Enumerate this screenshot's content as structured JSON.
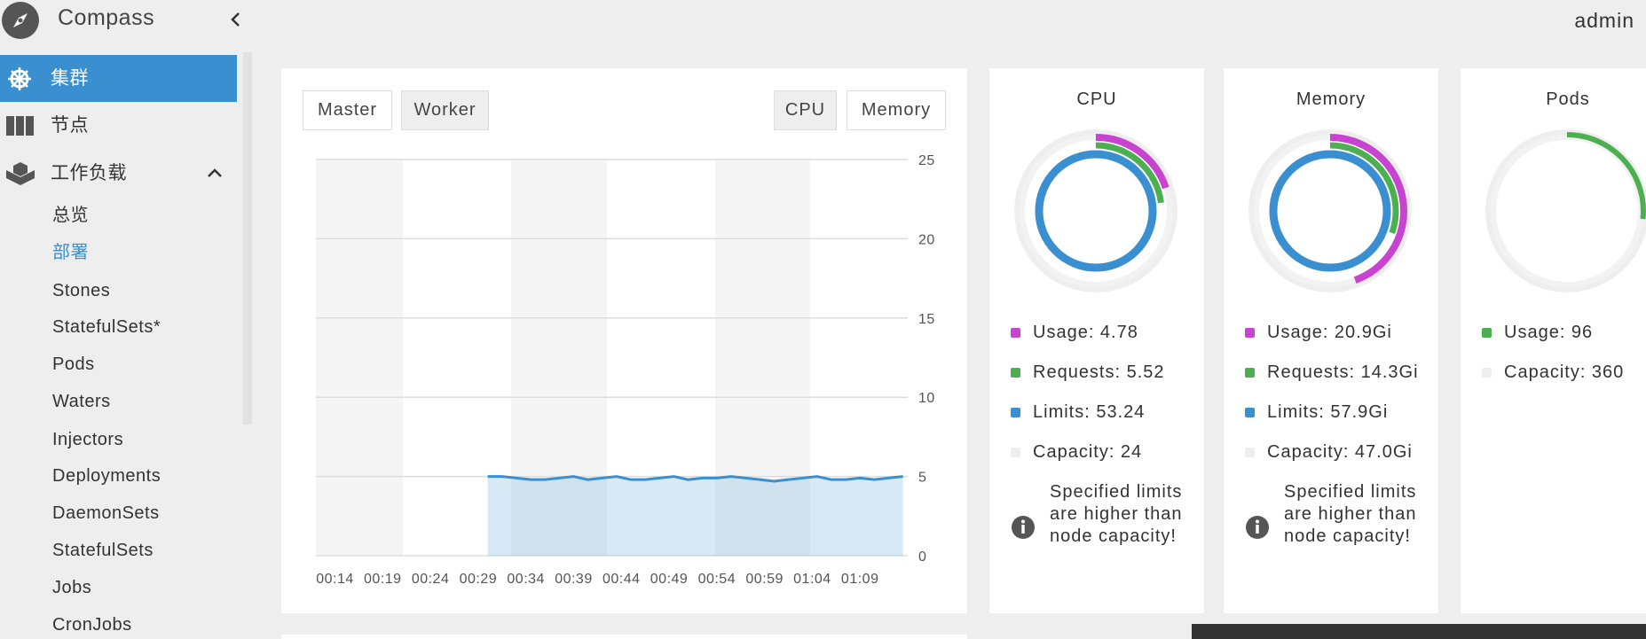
{
  "sidebar": {
    "brand": "Compass",
    "menu": [
      "集群",
      "节点",
      "工作负载"
    ],
    "submenu": [
      "总览",
      "部署",
      "Stones",
      "StatefulSets*",
      "Pods",
      "Waters",
      "Injectors",
      "Deployments",
      "DaemonSets",
      "StatefulSets",
      "Jobs",
      "CronJobs"
    ]
  },
  "header": {
    "user": "admin"
  },
  "tabs": {
    "role": [
      "Master",
      "Worker"
    ],
    "metric": [
      "CPU",
      "Memory"
    ]
  },
  "chart": {
    "type": "line",
    "color": "#3a8fd0",
    "x": [
      30,
      31.5,
      33,
      34.5,
      36,
      37.5,
      39,
      40.5,
      42,
      43.5,
      45,
      46.5,
      48,
      49.5,
      51,
      52.5,
      54,
      55.5,
      57,
      58.5,
      60,
      61.5,
      63,
      64.5,
      66,
      67.5,
      69,
      70.5,
      72,
      73.5
    ],
    "values": [
      5.0,
      5.0,
      4.9,
      4.8,
      4.8,
      4.9,
      5.0,
      4.8,
      4.9,
      5.0,
      4.8,
      4.8,
      4.9,
      5.0,
      4.8,
      4.9,
      4.9,
      5.0,
      4.9,
      4.8,
      4.7,
      4.8,
      4.9,
      5.0,
      4.8,
      4.8,
      4.9,
      4.8,
      4.9,
      5.0
    ],
    "xlim": [
      12,
      74
    ],
    "ylim": [
      0,
      25
    ],
    "yticks": [
      0,
      5,
      10,
      15,
      20,
      25
    ],
    "grid": true,
    "xticks": [
      {
        "value": 14,
        "label": "00:14"
      },
      {
        "value": 19,
        "label": "00:19"
      },
      {
        "value": 24,
        "label": "00:24"
      },
      {
        "value": 29,
        "label": "00:29"
      },
      {
        "value": 34,
        "label": "00:34"
      },
      {
        "value": 39,
        "label": "00:39"
      },
      {
        "value": 44,
        "label": "00:44"
      },
      {
        "value": 49,
        "label": "00:49"
      },
      {
        "value": 54,
        "label": "00:54"
      },
      {
        "value": 59,
        "label": "00:59"
      },
      {
        "value": 64,
        "label": "01:04"
      },
      {
        "value": 69,
        "label": "01:09"
      }
    ]
  },
  "cards": [
    {
      "title": "CPU",
      "series": [
        {
          "label": "Usage: 4.78",
          "value": 4.78,
          "color": "#c843cf"
        },
        {
          "label": "Requests: 5.52",
          "value": 5.52,
          "color": "#4caf50"
        },
        {
          "label": "Limits: 53.24",
          "value": 53.24,
          "color": "#3a8fd0"
        }
      ],
      "capacity": {
        "label": "Capacity: 24",
        "value": 24,
        "color": "#eeeeee"
      },
      "note": "Specified limits are higher than node capacity!"
    },
    {
      "title": "Memory",
      "series": [
        {
          "label": "Usage: 20.9Gi",
          "value": 20.9,
          "color": "#c843cf"
        },
        {
          "label": "Requests: 14.3Gi",
          "value": 14.3,
          "color": "#4caf50"
        },
        {
          "label": "Limits: 57.9Gi",
          "value": 57.9,
          "color": "#3a8fd0"
        }
      ],
      "capacity": {
        "label": "Capacity: 47.0Gi",
        "value": 47.0,
        "color": "#eeeeee"
      },
      "note": "Specified limits are higher than node capacity!"
    },
    {
      "title": "Pods",
      "series": [
        {
          "label": "Usage: 96",
          "value": 96,
          "color": "#4caf50"
        }
      ],
      "capacity": {
        "label": "Capacity: 360",
        "value": 360,
        "color": "#eeeeee"
      }
    }
  ]
}
